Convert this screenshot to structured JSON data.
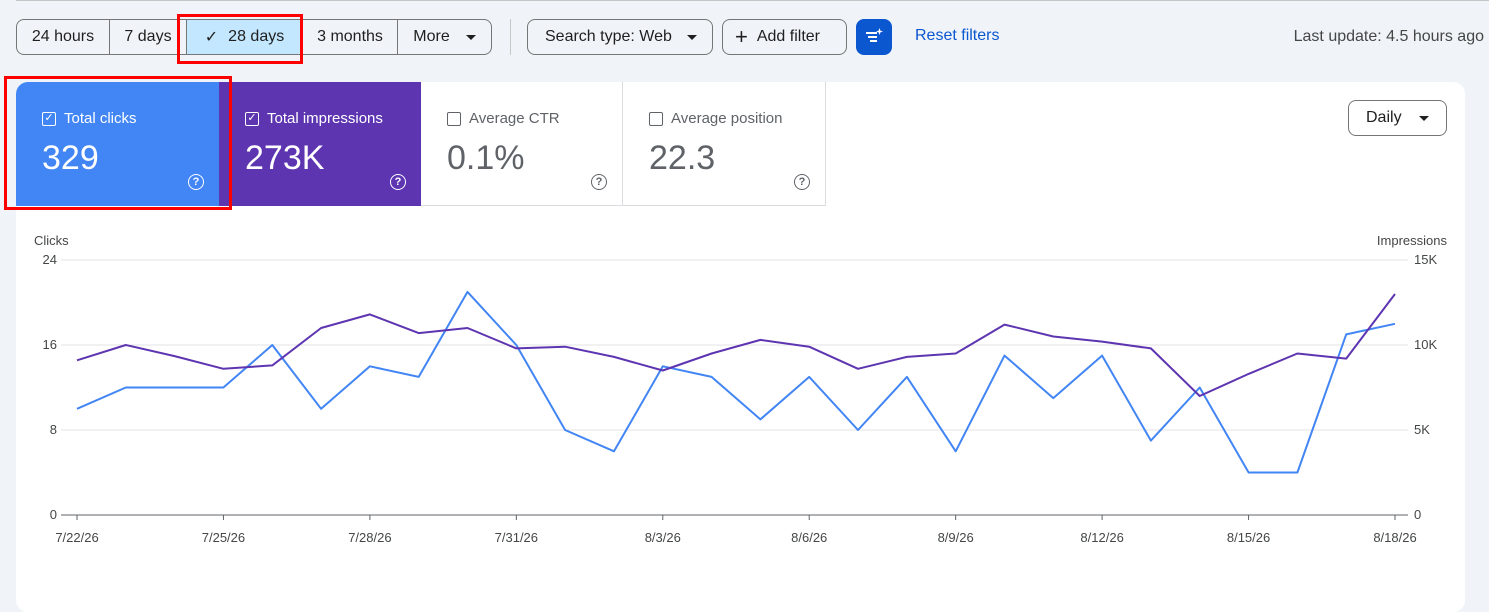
{
  "toolbar": {
    "date_ranges": [
      {
        "label": "24 hours",
        "selected": false
      },
      {
        "label": "7 days",
        "selected": false
      },
      {
        "label": "28 days",
        "selected": true
      },
      {
        "label": "3 months",
        "selected": false
      },
      {
        "label": "More",
        "selected": false,
        "dropdown": true
      }
    ],
    "search_type_label": "Search type: Web",
    "add_filter_label": "Add filter",
    "reset_label": "Reset filters",
    "last_update": "Last update: 4.5 hours ago"
  },
  "metrics": {
    "clicks": {
      "label": "Total clicks",
      "value": "329",
      "checked": true,
      "color": "#4285f4"
    },
    "impressions": {
      "label": "Total impressions",
      "value": "273K",
      "checked": true,
      "color": "#5e35b1"
    },
    "ctr": {
      "label": "Average CTR",
      "value": "0.1%",
      "checked": false
    },
    "position": {
      "label": "Average position",
      "value": "22.3",
      "checked": false
    }
  },
  "granularity": {
    "label": "Daily"
  },
  "chart_data": {
    "type": "line",
    "y_left_label": "Clicks",
    "y_right_label": "Impressions",
    "y_left_ticks": [
      "0",
      "8",
      "16",
      "24"
    ],
    "y_right_ticks": [
      "0",
      "5K",
      "10K",
      "15K"
    ],
    "ylim_left": [
      0,
      24
    ],
    "ylim_right": [
      0,
      15000
    ],
    "x_tick_labels": [
      "7/22/26",
      "7/25/26",
      "7/28/26",
      "7/31/26",
      "8/3/26",
      "8/6/26",
      "8/9/26",
      "8/12/26",
      "8/15/26",
      "8/18/26"
    ],
    "x": [
      "7/22/26",
      "7/23/26",
      "7/24/26",
      "7/25/26",
      "7/26/26",
      "7/27/26",
      "7/28/26",
      "7/29/26",
      "7/30/26",
      "7/31/26",
      "8/1/26",
      "8/2/26",
      "8/3/26",
      "8/4/26",
      "8/5/26",
      "8/6/26",
      "8/7/26",
      "8/8/26",
      "8/9/26",
      "8/10/26",
      "8/11/26",
      "8/12/26",
      "8/13/26",
      "8/14/26",
      "8/15/26",
      "8/16/26",
      "8/17/26",
      "8/18/26"
    ],
    "grid": true,
    "series": [
      {
        "name": "Clicks",
        "axis": "left",
        "color": "#4285f4",
        "values": [
          10,
          12,
          12,
          12,
          16,
          10,
          14,
          13,
          21,
          16,
          8,
          6,
          14,
          13,
          9,
          13,
          8,
          13,
          6,
          15,
          11,
          15,
          7,
          12,
          4,
          4,
          17,
          18
        ]
      },
      {
        "name": "Impressions",
        "axis": "right",
        "color": "#5e35b1",
        "values": [
          9100,
          10000,
          9350,
          8600,
          8800,
          11000,
          11800,
          10700,
          11000,
          9800,
          9900,
          9300,
          8500,
          9500,
          10300,
          9900,
          8600,
          9300,
          9500,
          11200,
          10500,
          10200,
          9800,
          7000,
          8300,
          9500,
          9200,
          13000
        ]
      }
    ]
  },
  "annotations": {
    "highlight_color": "#ff0000"
  }
}
